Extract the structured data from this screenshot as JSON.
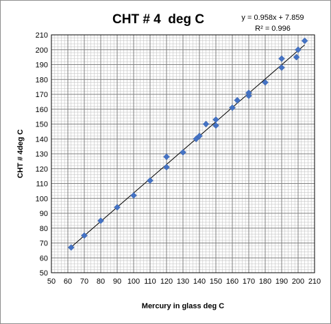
{
  "chart_data": {
    "type": "scatter",
    "title": "CHT # 4  deg C",
    "xlabel": "Mercury in glass  deg C",
    "ylabel": "CHT # 4deg C",
    "xlim": [
      50,
      210
    ],
    "ylim": [
      50,
      210
    ],
    "x_major_step": 10,
    "y_major_step": 10,
    "minor_divisions": 5,
    "grid": true,
    "trendline": {
      "slope": 0.958,
      "intercept": 7.859,
      "equation_text": "y = 0.958x + 7.859",
      "r2_text": "R² = 0.996"
    },
    "marker_color": "#4472c4",
    "points": [
      {
        "x": 62,
        "y": 67
      },
      {
        "x": 70,
        "y": 75
      },
      {
        "x": 80,
        "y": 85
      },
      {
        "x": 90,
        "y": 94
      },
      {
        "x": 100,
        "y": 102
      },
      {
        "x": 110,
        "y": 112
      },
      {
        "x": 120,
        "y": 121
      },
      {
        "x": 120,
        "y": 128
      },
      {
        "x": 130,
        "y": 131
      },
      {
        "x": 138,
        "y": 140
      },
      {
        "x": 140,
        "y": 142
      },
      {
        "x": 144,
        "y": 150
      },
      {
        "x": 150,
        "y": 149
      },
      {
        "x": 150,
        "y": 153
      },
      {
        "x": 160,
        "y": 161
      },
      {
        "x": 163,
        "y": 166
      },
      {
        "x": 170,
        "y": 169
      },
      {
        "x": 170,
        "y": 171
      },
      {
        "x": 180,
        "y": 178
      },
      {
        "x": 190,
        "y": 188
      },
      {
        "x": 190,
        "y": 194
      },
      {
        "x": 199,
        "y": 195
      },
      {
        "x": 200,
        "y": 200
      },
      {
        "x": 204,
        "y": 206
      }
    ]
  }
}
